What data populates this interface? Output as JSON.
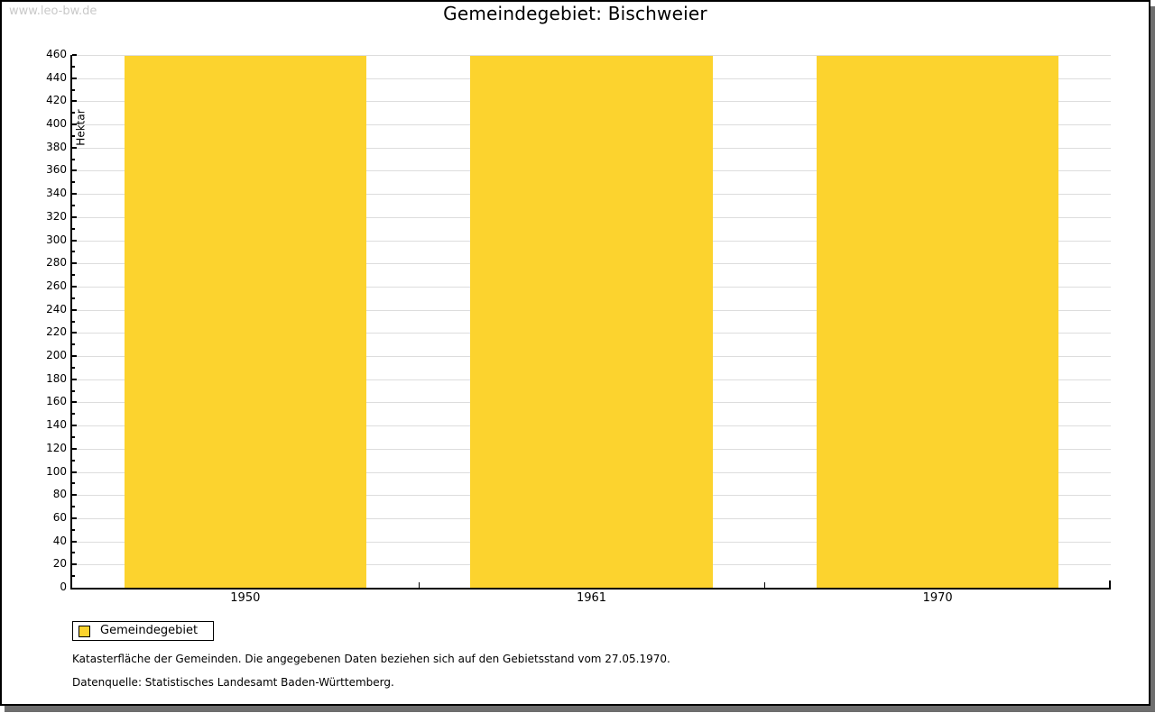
{
  "page": {
    "watermark": "www.leo-bw.de",
    "title": "Gemeindegebiet: Bischweier"
  },
  "chart_data": {
    "type": "bar",
    "title": "Gemeindegebiet: Bischweier",
    "categories": [
      "1950",
      "1961",
      "1970"
    ],
    "series": [
      {
        "name": "Gemeindegebiet",
        "color": "#FCD32E",
        "values": [
          459,
          459,
          459
        ]
      }
    ],
    "xlabel": "",
    "ylabel": "Hektar",
    "ylim": [
      0,
      460
    ],
    "ytick_step": 20,
    "yminor_step": 10,
    "grid": true,
    "grid_color": "#DDDDDD",
    "bar_width_ratio": 0.7,
    "legend_position": "bottom-left"
  },
  "legend": {
    "items": [
      {
        "label": "Gemeindegebiet",
        "color": "#FCD32E",
        "swatch": "square"
      }
    ]
  },
  "footnotes": {
    "line1": "Katasterfläche der Gemeinden. Die angegebenen Daten beziehen sich auf den Gebietsstand vom 27.05.1970.",
    "line2": "Datenquelle: Statistisches Landesamt Baden-Württemberg."
  }
}
